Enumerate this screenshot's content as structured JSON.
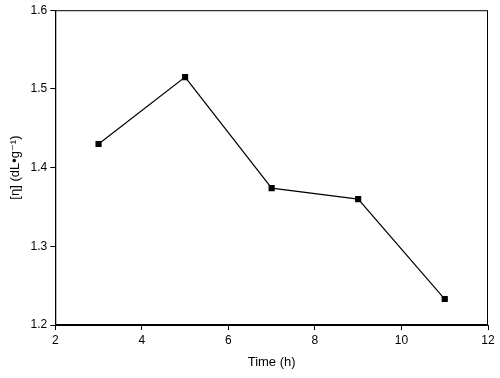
{
  "chart_data": {
    "type": "line",
    "x_label": "Time (h)",
    "y_label": "[η] (dL•g⁻¹)",
    "x": [
      3,
      5,
      7,
      9,
      11
    ],
    "values": [
      1.43,
      1.515,
      1.374,
      1.36,
      1.233
    ],
    "color": "#000000",
    "marker": "square",
    "line_style": "solid",
    "xlim": [
      2,
      12
    ],
    "xticks": [
      2,
      4,
      6,
      8,
      10,
      12
    ],
    "ylim": [
      1.2,
      1.6
    ],
    "yticks": [
      1.2,
      1.3,
      1.4,
      1.5,
      1.6
    ],
    "grid": false
  }
}
